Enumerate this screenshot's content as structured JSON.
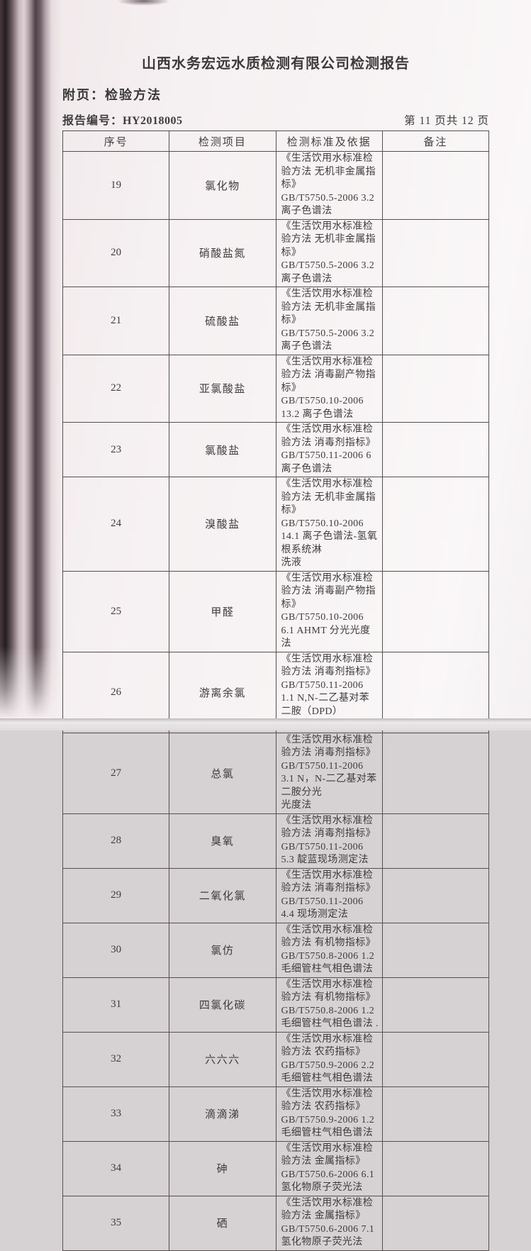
{
  "document": {
    "title": "山西水务宏远水质检测有限公司检测报告",
    "attachment_label": "附页：检验方法",
    "report_no_label": "报告编号：",
    "report_no_value": "HY2018005",
    "page_indicator": "第 11 页共 12 页"
  },
  "colors": {
    "paper": "#f7f3f4",
    "ink": "#3e3c3d",
    "table_border": "#55504f",
    "binding_shadow_dark": "#241d20"
  },
  "table": {
    "headers": [
      "序号",
      "检测项目",
      "检测标准及依据",
      "备注"
    ],
    "rows": [
      {
        "no": "19",
        "item": "氯化物",
        "standard": "《生活饮用水标准检验方法 无机非金属指标》\nGB/T5750.5-2006  3.2 离子色谱法",
        "remark": ""
      },
      {
        "no": "20",
        "item": "硝酸盐氮",
        "standard": "《生活饮用水标准检验方法 无机非金属指标》\nGB/T5750.5-2006  3.2 离子色谱法",
        "remark": ""
      },
      {
        "no": "21",
        "item": "硫酸盐",
        "standard": "《生活饮用水标准检验方法 无机非金属指标》\nGB/T5750.5-2006  3.2 离子色谱法",
        "remark": ""
      },
      {
        "no": "22",
        "item": "亚氯酸盐",
        "standard": "《生活饮用水标准检验方法 消毒副产物指标》\nGB/T5750.10-2006 13.2 离子色谱法",
        "remark": ""
      },
      {
        "no": "23",
        "item": "氯酸盐",
        "standard": "《生活饮用水标准检验方法 消毒剂指标》\nGB/T5750.11-2006 6 离子色谱法",
        "remark": ""
      },
      {
        "no": "24",
        "item": "溴酸盐",
        "standard": "《生活饮用水标准检验方法 无机非金属指标》\nGB/T5750.10-2006 14.1 离子色谱法-氢氧根系统淋\n洗液",
        "remark": ""
      },
      {
        "no": "25",
        "item": "甲醛",
        "standard": "《生活饮用水标准检验方法 消毒副产物指标》\nGB/T5750.10-2006 6.1 AHMT 分光光度法",
        "remark": ""
      },
      {
        "no": "26",
        "item": "游离余氯",
        "standard": "《生活饮用水标准检验方法 消毒剂指标》\nGB/T5750.11-2006 1.1 N,N-二乙基对苯二胺（DPD）\n分光光度法",
        "remark": ""
      },
      {
        "no": "27",
        "item": "总氯",
        "standard": "《生活饮用水标准检验方法 消毒剂指标》\nGB/T5750.11-2006 3.1 N，N-二乙基对苯二胺分光\n光度法",
        "remark": ""
      },
      {
        "no": "28",
        "item": "臭氧",
        "standard": "《生活饮用水标准检验方法 消毒剂指标》\nGB/T5750.11-2006 5.3 靛蓝现场测定法",
        "remark": ""
      },
      {
        "no": "29",
        "item": "二氧化氯",
        "standard": "《生活饮用水标准检验方法 消毒剂指标》\nGB/T5750.11-2006 4.4 现场测定法",
        "remark": ""
      },
      {
        "no": "30",
        "item": "氯仿",
        "standard": "《生活饮用水标准检验方法 有机物指标》\nGB/T5750.8-2006  1.2 毛细管柱气相色谱法",
        "remark": ""
      },
      {
        "no": "31",
        "item": "四氯化碳",
        "standard": "《生活饮用水标准检验方法 有机物指标》\nGB/T5750.8-2006  1.2 毛细管柱气相色谱法 .",
        "remark": ""
      },
      {
        "no": "32",
        "item": "六六六",
        "standard": "《生活饮用水标准检验方法 农药指标》\nGB/T5750.9-2006  2.2 毛细管柱气相色谱法",
        "remark": ""
      },
      {
        "no": "33",
        "item": "滴滴涕",
        "standard": "《生活饮用水标准检验方法 农药指标》\nGB/T5750.9-2006  1.2 毛细管柱气相色谱法",
        "remark": ""
      },
      {
        "no": "34",
        "item": "砷",
        "standard": "《生活饮用水标准检验方法 金属指标》\nGB/T5750.6-2006  6.1 氢化物原子荧光法",
        "remark": ""
      },
      {
        "no": "35",
        "item": "硒",
        "standard": "《生活饮用水标准检验方法 金属指标》\nGB/T5750.6-2006  7.1 氢化物原子荧光法",
        "remark": ""
      }
    ]
  }
}
